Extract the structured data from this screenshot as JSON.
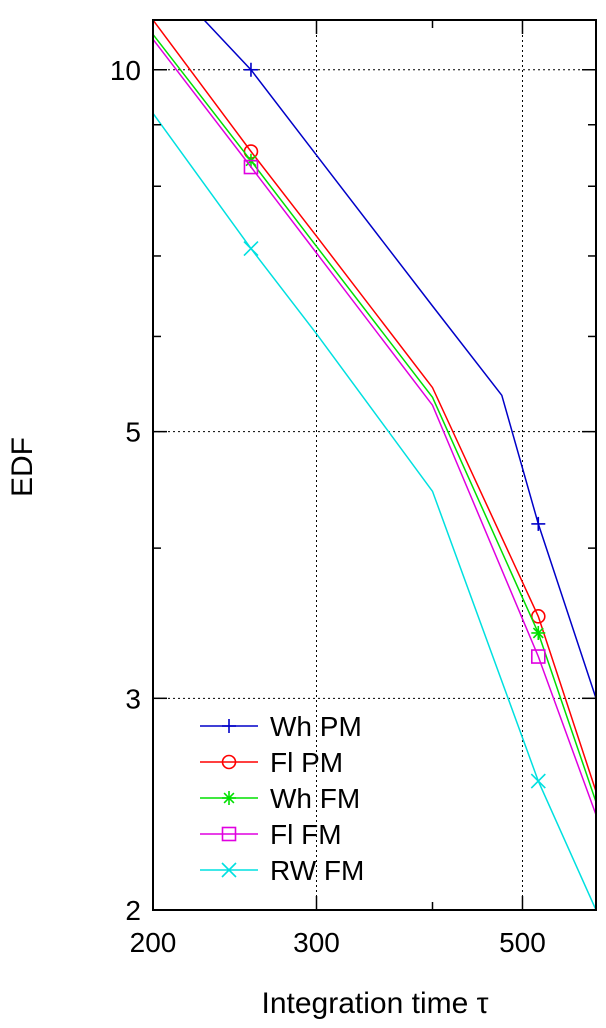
{
  "chart_data": {
    "type": "line",
    "title": "",
    "xlabel": "Integration time τ",
    "ylabel": "EDF",
    "x_scale": "log",
    "y_scale": "log",
    "xlim": [
      200,
      600
    ],
    "ylim": [
      2,
      11
    ],
    "x_ticks": [
      200,
      300,
      500
    ],
    "y_ticks": [
      2,
      3,
      5,
      10
    ],
    "grid": true,
    "legend_position": "bottom-left",
    "series": [
      {
        "name": "Wh PM",
        "color": "#0000c8",
        "marker": "plus",
        "curve": [
          [
            227,
            11.0
          ],
          [
            255,
            10.0
          ],
          [
            300,
            8.49
          ],
          [
            400,
            6.36
          ],
          [
            475,
            5.36
          ],
          [
            520,
            4.19
          ],
          [
            600,
            3.0
          ]
        ],
        "markers": [
          [
            255,
            10.0
          ],
          [
            520,
            4.19
          ]
        ]
      },
      {
        "name": "Fl PM",
        "color": "#ff0000",
        "marker": "circle",
        "curve": [
          [
            200,
            11.0
          ],
          [
            255,
            8.55
          ],
          [
            300,
            7.27
          ],
          [
            400,
            5.44
          ],
          [
            520,
            3.51
          ],
          [
            600,
            2.51
          ]
        ],
        "markers": [
          [
            255,
            8.55
          ],
          [
            520,
            3.51
          ]
        ]
      },
      {
        "name": "Wh FM",
        "color": "#00e000",
        "marker": "asterisk",
        "curve": [
          [
            200,
            10.7
          ],
          [
            255,
            8.4
          ],
          [
            300,
            7.13
          ],
          [
            400,
            5.34
          ],
          [
            520,
            3.4
          ],
          [
            600,
            2.46
          ]
        ],
        "markers": [
          [
            255,
            8.4
          ],
          [
            520,
            3.4
          ]
        ]
      },
      {
        "name": "Fl FM",
        "color": "#e000e0",
        "marker": "square",
        "curve": [
          [
            200,
            10.6
          ],
          [
            255,
            8.3
          ],
          [
            300,
            7.04
          ],
          [
            400,
            5.26
          ],
          [
            520,
            3.25
          ],
          [
            600,
            2.4
          ]
        ],
        "markers": [
          [
            255,
            8.3
          ],
          [
            520,
            3.25
          ]
        ]
      },
      {
        "name": "RW FM",
        "color": "#00e0e0",
        "marker": "cross",
        "curve": [
          [
            200,
            9.2
          ],
          [
            255,
            7.1
          ],
          [
            300,
            6.03
          ],
          [
            400,
            4.46
          ],
          [
            520,
            2.56
          ],
          [
            600,
            2.0
          ]
        ],
        "markers": [
          [
            255,
            7.1
          ],
          [
            520,
            2.56
          ]
        ]
      }
    ]
  }
}
